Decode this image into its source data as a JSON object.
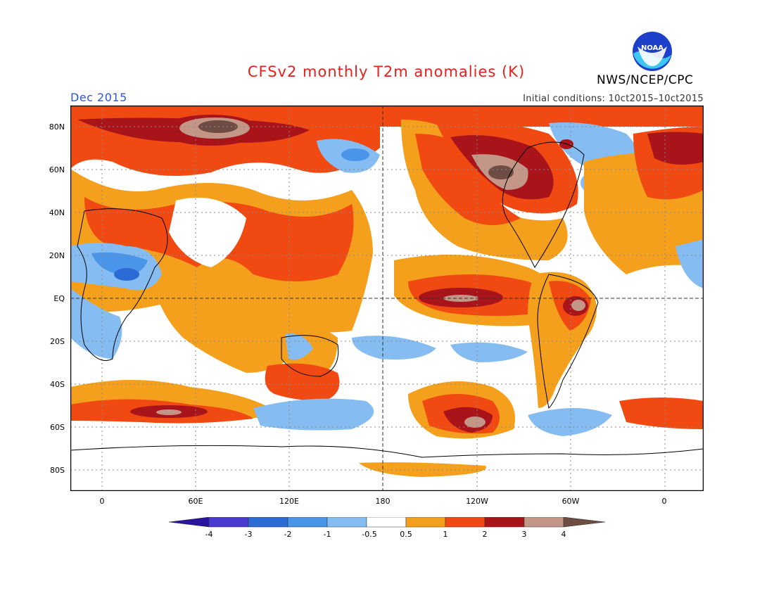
{
  "title": "CFSv2 monthly T2m anomalies (K)",
  "period": "Dec 2015",
  "initial_conditions": "Initial conditions: 10ct2015–10ct2015",
  "agency": "NWS/NCEP/CPC",
  "logo": {
    "text": "NOAA",
    "icon": "noaa-logo"
  },
  "colors": {
    "title": "#e8201c",
    "period": "#2f55d8",
    "levels": [
      "#2a139e",
      "#4a3ad2",
      "#2c6bd6",
      "#4a95ea",
      "#85bdf2",
      "#ffffff",
      "#f5a01d",
      "#f04a12",
      "#a9141a",
      "#c39688",
      "#6e4b43"
    ]
  },
  "map": {
    "y_ticks": [
      "80N",
      "60N",
      "40N",
      "20N",
      "EQ",
      "20S",
      "40S",
      "60S",
      "80S"
    ],
    "x_ticks": [
      "0",
      "60E",
      "120E",
      "180",
      "120W",
      "60W",
      "0"
    ]
  },
  "colorbar": {
    "labels": [
      "-4",
      "-3",
      "-2",
      "-1",
      "-0.5",
      "0.5",
      "1",
      "2",
      "3",
      "4"
    ]
  }
}
